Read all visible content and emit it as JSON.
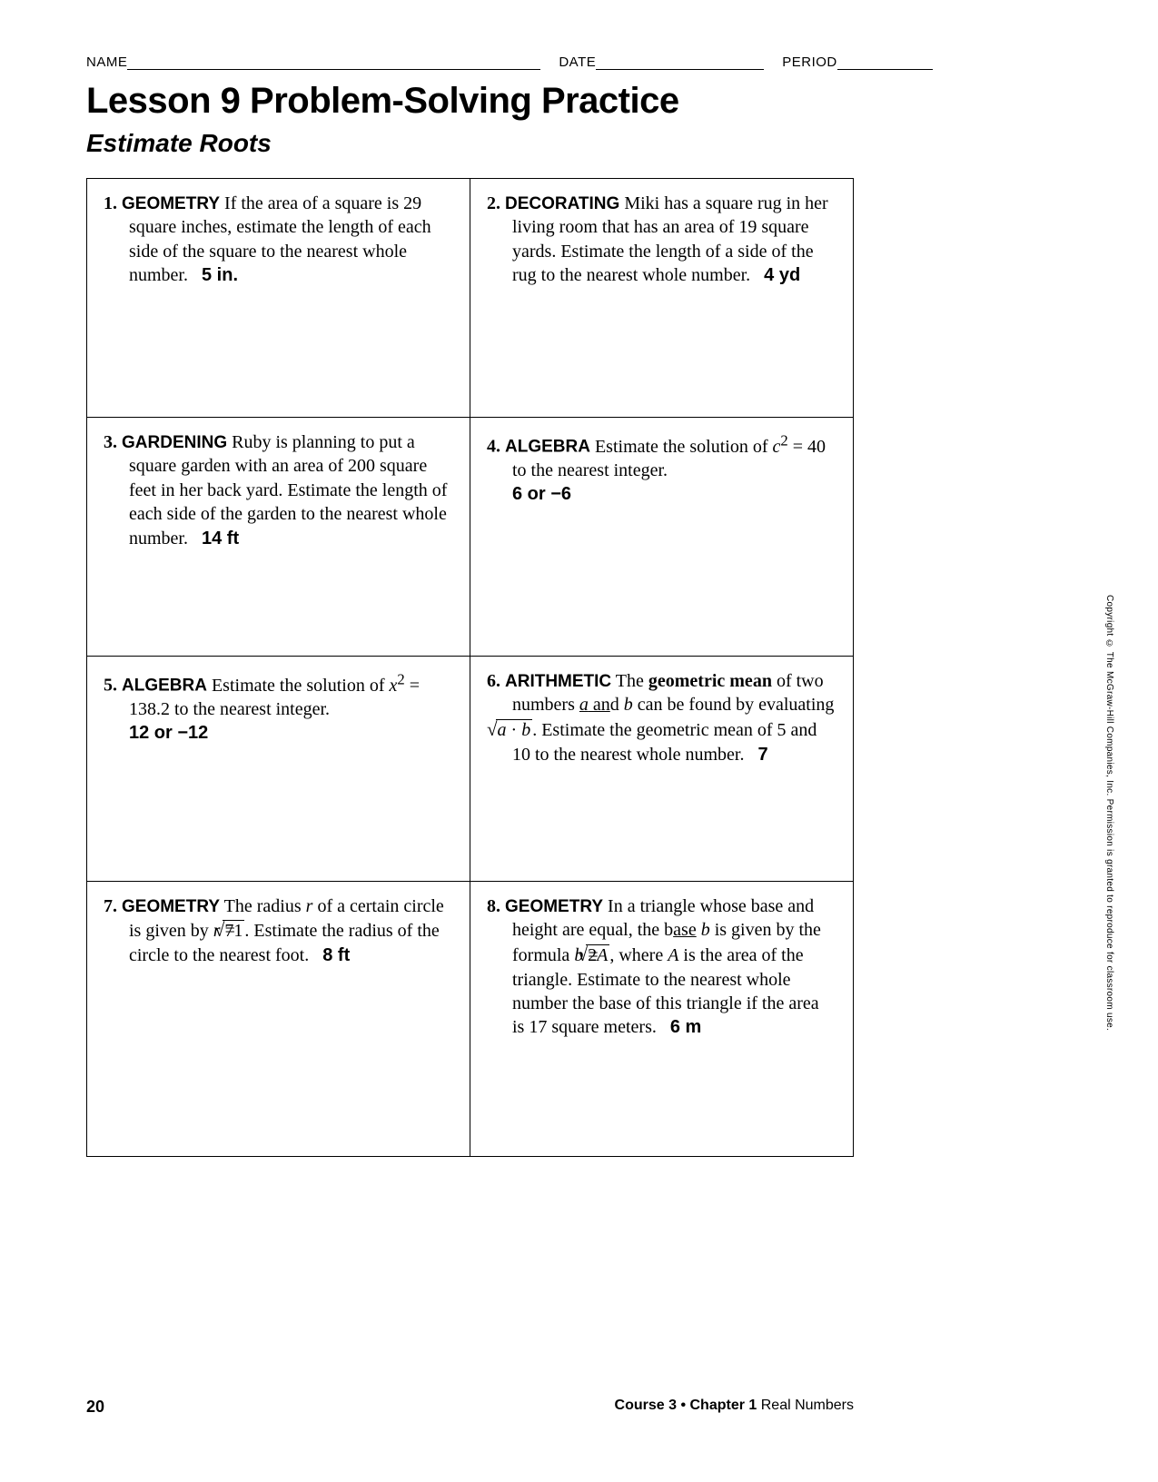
{
  "header": {
    "name_label": "NAME",
    "date_label": "DATE",
    "period_label": "PERIOD"
  },
  "title": "Lesson 9 Problem-Solving Practice",
  "subtitle": "Estimate Roots",
  "problems": [
    {
      "num": "1.",
      "category": "GEOMETRY",
      "text_html": "If the area of a square is 29 square inches, estimate the length of each side of the square to the nearest whole number.",
      "answer": "5 in."
    },
    {
      "num": "2.",
      "category": "DECORATING",
      "text_html": "Miki has a square rug in her living room that has an area of 19 square yards. Estimate the length of a side of the rug to the nearest whole number.",
      "answer": "4 yd"
    },
    {
      "num": "3.",
      "category": "GARDENING",
      "text_html": "Ruby is planning to put a square garden with an area of 200 square feet in her back yard. Estimate the length of each side of the garden to the nearest whole number.",
      "answer": "14 ft"
    },
    {
      "num": "4.",
      "category": "ALGEBRA",
      "text_html": "Estimate the solution of <span class='ital'>c</span><sup>2</sup> = 40 to the nearest integer.",
      "answer": "6 or −6",
      "answer_newline": true
    },
    {
      "num": "5.",
      "category": "ALGEBRA",
      "text_html": "Estimate the solution of <span class='ital'>x</span><sup>2</sup> = 138.2 to the nearest integer.",
      "answer": "12 or −12",
      "answer_newline": true
    },
    {
      "num": "6.",
      "category": "ARITHMETIC",
      "text_html": "The <b>geometric mean</b> of two numbers <span class='under'><span class='ital'>a</span> an</span>d <span class='ital'>b</span> can be found by evaluating <span class='sqrt'><span class='radicand'><span class='ital'>a</span> · <span class='ital'>b</span></span></span>. Estimate the geometric mean of 5 and 10 to the nearest whole number.",
      "answer": "7"
    },
    {
      "num": "7.",
      "category": "GEOMETRY",
      "text_html": "The radius <span class='ital'>r</span> of a certain circle is given by <span class='ital'>r</span> = <span class='sqrt'><span class='radicand'>71</span></span>. Estimate the radius of the circle to the nearest foot.",
      "answer": "8 ft"
    },
    {
      "num": "8.",
      "category": "GEOMETRY",
      "text_html": "In a triangle whose base and height are equal, the b<span class='under'>ase</span> <span class='ital'>b</span> is given by the formula <span class='ital'>b</span> = <span class='sqrt'><span class='radicand'>2<span class='ital'>A</span></span></span>, where <span class='ital'>A</span> is the area of the triangle. Estimate to the nearest whole number the base of this triangle if the area is 17 square meters.",
      "answer": "6 m"
    }
  ],
  "footer": {
    "page_number": "20",
    "course": "Course 3 • Chapter 1",
    "chapter_title": " Real Numbers"
  },
  "copyright": "Copyright © The McGraw-Hill Companies, Inc. Permission is granted to reproduce for classroom use."
}
